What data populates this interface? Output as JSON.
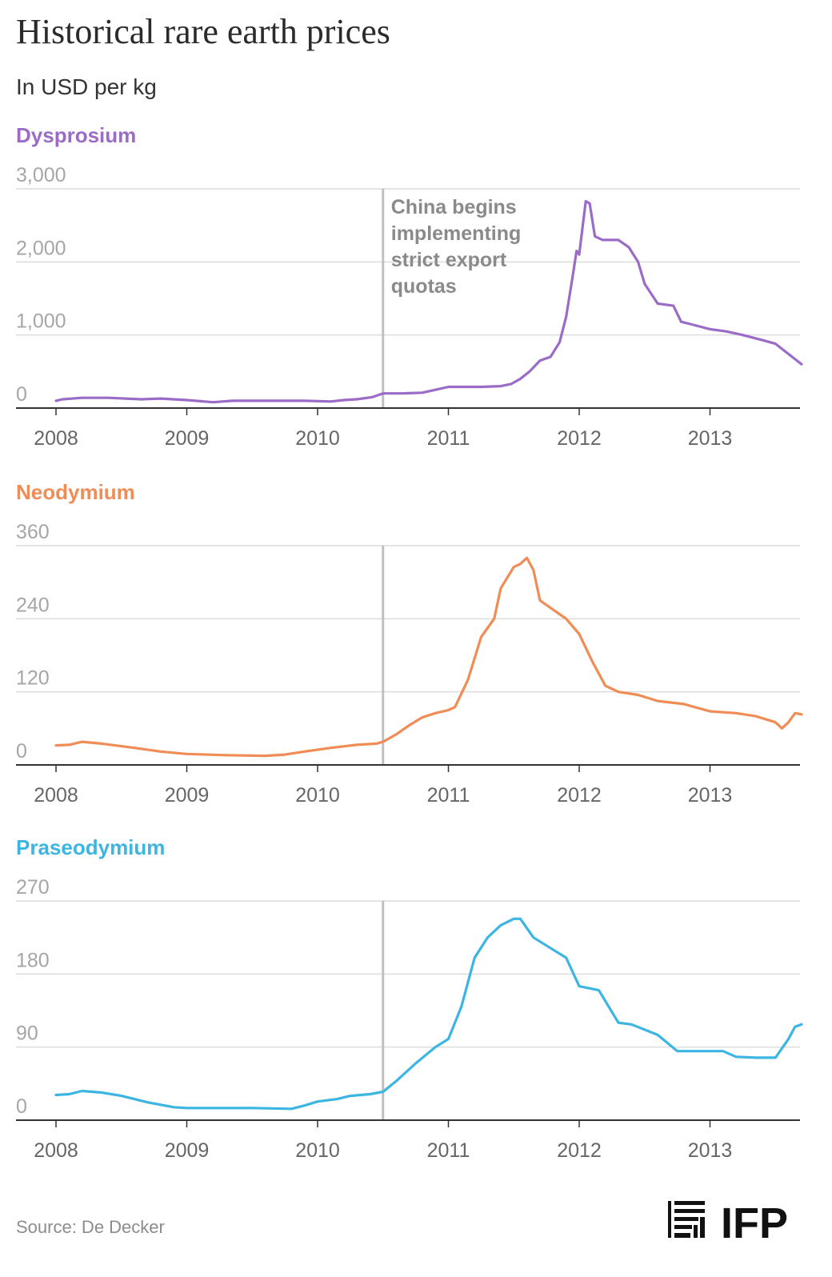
{
  "header": {
    "title": "Historical rare earth prices",
    "subtitle": "In USD per kg"
  },
  "footer": {
    "source": "Source: De Decker",
    "logo_text": "IFP"
  },
  "chart_data": [
    {
      "type": "line",
      "title": "Dysprosium",
      "color": "#9b6cc7",
      "ylabel": "In USD per kg",
      "ylim": [
        0,
        3000
      ],
      "yticks": [
        0,
        1000,
        2000,
        3000
      ],
      "ytick_labels": [
        "0",
        "1,000",
        "2,000",
        "3,000"
      ],
      "xlim": [
        2008,
        2013.7
      ],
      "xticks": [
        2008,
        2009,
        2010,
        2011,
        2012,
        2013
      ],
      "xtick_labels": [
        "2008",
        "2009",
        "2010",
        "2011",
        "2012",
        "2013"
      ],
      "annotation": {
        "x": 2010.5,
        "lines": [
          "China begins",
          "implementing",
          "strict export",
          "quotas"
        ]
      },
      "series": [
        {
          "name": "Dysprosium",
          "x": [
            2008.0,
            2008.05,
            2008.2,
            2008.4,
            2008.65,
            2008.8,
            2009.0,
            2009.2,
            2009.35,
            2009.6,
            2009.9,
            2010.1,
            2010.2,
            2010.3,
            2010.42,
            2010.5,
            2010.65,
            2010.8,
            2010.9,
            2011.0,
            2011.25,
            2011.4,
            2011.48,
            2011.55,
            2011.62,
            2011.7,
            2011.78,
            2011.85,
            2011.9,
            2011.95,
            2011.98,
            2012.0,
            2012.05,
            2012.08,
            2012.12,
            2012.18,
            2012.3,
            2012.38,
            2012.45,
            2012.5,
            2012.6,
            2012.72,
            2012.78,
            2012.85,
            2013.0,
            2013.12,
            2013.25,
            2013.4,
            2013.5,
            2013.7
          ],
          "values": [
            100,
            120,
            140,
            140,
            120,
            130,
            110,
            80,
            100,
            100,
            100,
            90,
            110,
            120,
            150,
            200,
            200,
            210,
            250,
            290,
            290,
            300,
            330,
            400,
            500,
            650,
            700,
            900,
            1250,
            1800,
            2150,
            2100,
            2830,
            2800,
            2350,
            2300,
            2300,
            2200,
            2000,
            1700,
            1430,
            1400,
            1180,
            1150,
            1080,
            1050,
            1000,
            930,
            880,
            600
          ]
        }
      ]
    },
    {
      "type": "line",
      "title": "Neodymium",
      "color": "#f08c55",
      "ylabel": "In USD per kg",
      "ylim": [
        0,
        360
      ],
      "yticks": [
        0,
        120,
        240,
        360
      ],
      "ytick_labels": [
        "0",
        "120",
        "240",
        "360"
      ],
      "xlim": [
        2008,
        2013.7
      ],
      "xticks": [
        2008,
        2009,
        2010,
        2011,
        2012,
        2013
      ],
      "xtick_labels": [
        "2008",
        "2009",
        "2010",
        "2011",
        "2012",
        "2013"
      ],
      "annotation": {
        "x": 2010.5,
        "lines": []
      },
      "series": [
        {
          "name": "Neodymium",
          "x": [
            2008.0,
            2008.1,
            2008.2,
            2008.35,
            2008.6,
            2008.8,
            2009.0,
            2009.3,
            2009.6,
            2009.75,
            2009.9,
            2010.1,
            2010.3,
            2010.45,
            2010.5,
            2010.6,
            2010.7,
            2010.8,
            2010.9,
            2011.0,
            2011.05,
            2011.15,
            2011.25,
            2011.35,
            2011.4,
            2011.5,
            2011.55,
            2011.6,
            2011.65,
            2011.7,
            2011.8,
            2011.9,
            2012.0,
            2012.1,
            2012.2,
            2012.3,
            2012.45,
            2012.6,
            2012.8,
            2013.0,
            2013.2,
            2013.35,
            2013.5,
            2013.55,
            2013.6,
            2013.65,
            2013.7
          ],
          "values": [
            32,
            33,
            38,
            35,
            28,
            22,
            18,
            16,
            15,
            17,
            22,
            28,
            33,
            35,
            38,
            50,
            65,
            78,
            85,
            90,
            95,
            140,
            210,
            240,
            290,
            325,
            330,
            340,
            320,
            270,
            255,
            240,
            215,
            170,
            130,
            120,
            115,
            105,
            100,
            88,
            85,
            80,
            70,
            60,
            70,
            85,
            83
          ]
        }
      ]
    },
    {
      "type": "line",
      "title": "Praseodymium",
      "color": "#3cb5e2",
      "ylabel": "In USD per kg",
      "ylim": [
        0,
        270
      ],
      "yticks": [
        0,
        90,
        180,
        270
      ],
      "ytick_labels": [
        "0",
        "90",
        "180",
        "270"
      ],
      "xlim": [
        2008,
        2013.7
      ],
      "xticks": [
        2008,
        2009,
        2010,
        2011,
        2012,
        2013
      ],
      "xtick_labels": [
        "2008",
        "2009",
        "2010",
        "2011",
        "2012",
        "2013"
      ],
      "annotation": {
        "x": 2010.5,
        "lines": []
      },
      "series": [
        {
          "name": "Praseodymium",
          "x": [
            2008.0,
            2008.1,
            2008.2,
            2008.35,
            2008.5,
            2008.7,
            2008.9,
            2009.0,
            2009.2,
            2009.5,
            2009.8,
            2009.9,
            2010.0,
            2010.15,
            2010.25,
            2010.4,
            2010.5,
            2010.6,
            2010.75,
            2010.9,
            2011.0,
            2011.1,
            2011.2,
            2011.3,
            2011.4,
            2011.5,
            2011.55,
            2011.65,
            2011.75,
            2011.9,
            2012.0,
            2012.15,
            2012.3,
            2012.4,
            2012.6,
            2012.75,
            2012.85,
            2013.1,
            2013.2,
            2013.35,
            2013.5,
            2013.6,
            2013.65,
            2013.7
          ],
          "values": [
            31,
            32,
            36,
            34,
            30,
            22,
            16,
            15,
            15,
            15,
            14,
            18,
            23,
            26,
            30,
            32,
            35,
            48,
            70,
            90,
            100,
            140,
            200,
            225,
            240,
            248,
            248,
            225,
            215,
            200,
            165,
            160,
            120,
            118,
            105,
            85,
            85,
            85,
            78,
            77,
            77,
            100,
            115,
            118
          ]
        }
      ]
    }
  ]
}
